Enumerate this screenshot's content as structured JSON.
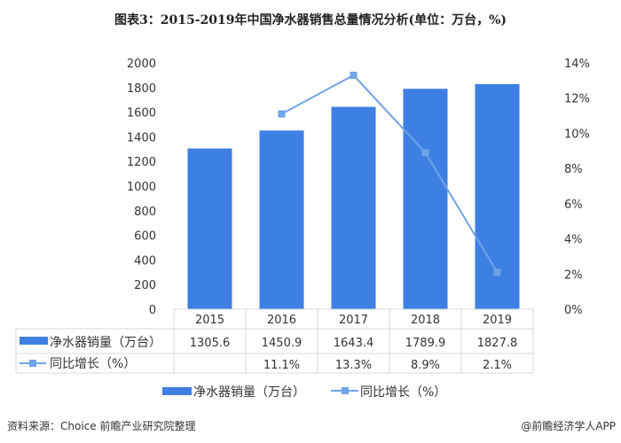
{
  "title": "图表3：2015-2019年中国净水器销售总量情况分析(单位：万台，%)",
  "source": "资料来源：Choice 前瞻产业研究院整理",
  "brand": "@前瞻经济学人APP",
  "colors": {
    "bar": "#3e7fe3",
    "line": "#6ea3e6"
  },
  "chart_data": {
    "type": "bar+line",
    "categories": [
      "2015",
      "2016",
      "2017",
      "2018",
      "2019"
    ],
    "series": [
      {
        "name": "净水器销量（万台）",
        "type": "bar",
        "axis": "left",
        "values": [
          1305.6,
          1450.9,
          1643.4,
          1789.9,
          1827.8
        ],
        "labels": [
          "1305.6",
          "1450.9",
          "1643.4",
          "1789.9",
          "1827.8"
        ]
      },
      {
        "name": "同比增长（%）",
        "type": "line",
        "axis": "right",
        "values": [
          null,
          11.1,
          13.3,
          8.9,
          2.1
        ],
        "labels": [
          "",
          "11.1%",
          "13.3%",
          "8.9%",
          "2.1%"
        ]
      }
    ],
    "ylim": [
      0,
      2000
    ],
    "yticks": [
      "0",
      "200",
      "400",
      "600",
      "800",
      "1000",
      "1200",
      "1400",
      "1600",
      "1800",
      "2000"
    ],
    "y2lim": [
      0,
      14
    ],
    "y2ticks": [
      "0%",
      "2%",
      "4%",
      "6%",
      "8%",
      "10%",
      "12%",
      "14%"
    ],
    "grid": false,
    "legend": "bottom",
    "data_table": true
  }
}
